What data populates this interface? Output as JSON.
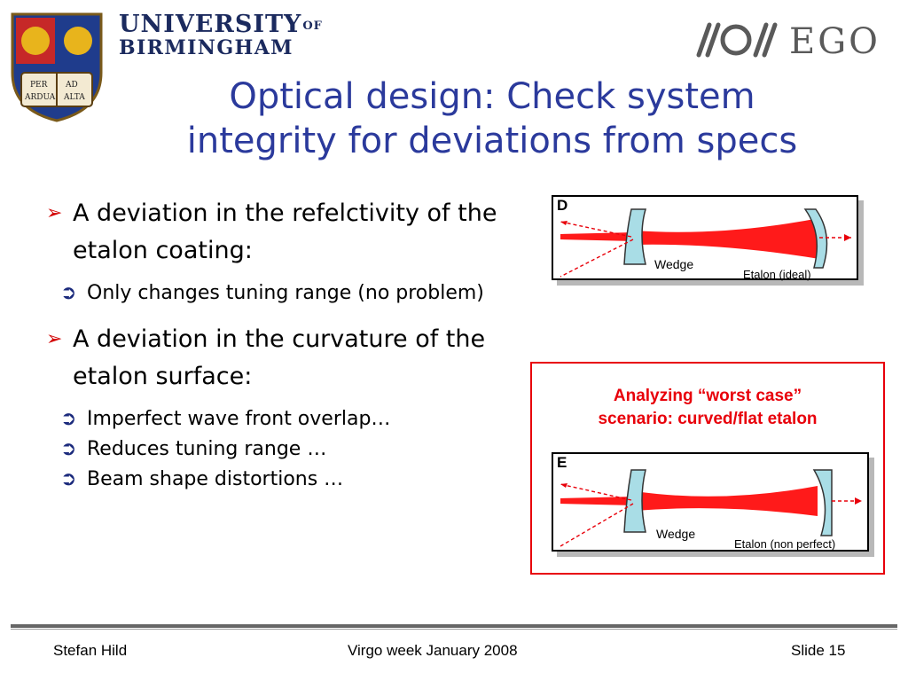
{
  "header": {
    "university_line1": "UNIVERSITY",
    "university_of": "OF",
    "university_line2": "BIRMINGHAM",
    "crest_text": [
      "PER",
      "AD",
      "ARDUA",
      "ALTA"
    ],
    "ego_text": "EGO"
  },
  "slide": {
    "title_line1": "Optical design: Check system",
    "title_line2": "integrity for deviations from specs",
    "bullets": [
      {
        "text": "A deviation in the refelctivity of the etalon coating:",
        "subs": [
          "Only changes tuning range (no problem)"
        ]
      },
      {
        "text": "A deviation in the curvature of the etalon surface:",
        "subs": [
          "Imperfect wave front overlap…",
          "Reduces tuning range …",
          "Beam shape distortions …"
        ]
      }
    ],
    "callout_line1": "Analyzing “worst case”",
    "callout_line2": "scenario: curved/flat etalon"
  },
  "figures": {
    "d": {
      "letter": "D",
      "wedge_label": "Wedge",
      "etalon_label": "Etalon (ideal)"
    },
    "e": {
      "letter": "E",
      "wedge_label": "Wedge",
      "etalon_label": "Etalon (non perfect)"
    }
  },
  "footer": {
    "author": "Stefan Hild",
    "event": "Virgo week January 2008",
    "slide": "Slide 15"
  },
  "colors": {
    "title": "#2b3a9c",
    "accent_red": "#e8000a",
    "beam_red": "#ff1a1a",
    "optic_fill": "#a9dde6"
  }
}
